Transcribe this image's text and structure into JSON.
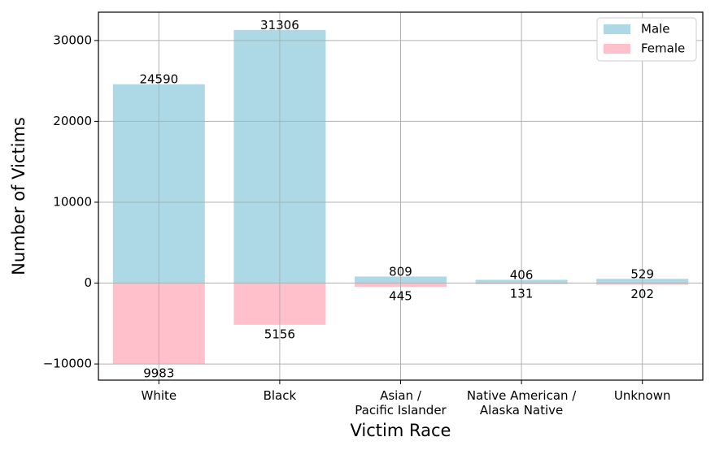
{
  "chart_data": {
    "type": "bar",
    "categories": [
      [
        "White"
      ],
      [
        "Black"
      ],
      [
        "Asian /",
        "Pacific Islander"
      ],
      [
        "Native American /",
        "Alaska Native"
      ],
      [
        "Unknown"
      ]
    ],
    "series": [
      {
        "name": "Male",
        "values": [
          24590,
          31306,
          809,
          406,
          529
        ],
        "color": "#add8e6",
        "direction": "up"
      },
      {
        "name": "Female",
        "values": [
          9983,
          5156,
          445,
          131,
          202
        ],
        "color": "#ffc0cb",
        "direction": "down"
      }
    ],
    "xlabel": "Victim Race",
    "ylabel": "Number of Victims",
    "ylim": [
      -12000,
      33500
    ],
    "yticks": [
      -10000,
      0,
      10000,
      20000,
      30000
    ],
    "ytick_labels": [
      "−10000",
      "0",
      "10000",
      "20000",
      "30000"
    ],
    "grid": true,
    "legend_position": "top-right"
  }
}
